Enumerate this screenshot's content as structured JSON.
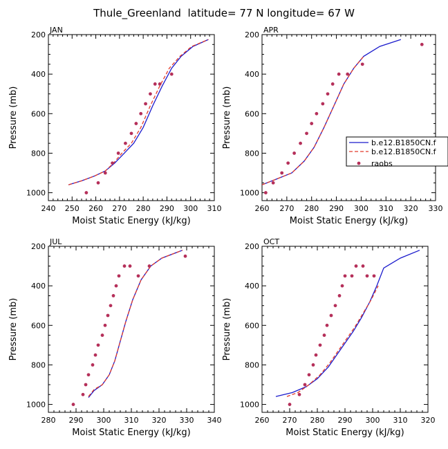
{
  "figure": {
    "title": "Thule_Greenland  latitude= 77 N longitude= 67 W"
  },
  "legend": {
    "entries": [
      {
        "label": "b.e12.B1850CN.f",
        "color": "#1a1acc",
        "style": "solid"
      },
      {
        "label": "b.e12.B1850CN.f",
        "color": "#e23a2a",
        "style": "dashed"
      },
      {
        "label": "raobs",
        "color": "#b5305a",
        "style": "marker"
      }
    ]
  },
  "chart_data": [
    {
      "type": "line",
      "panel": "JAN",
      "xlabel": "Moist Static Energy (kJ/kg)",
      "ylabel": "Pressure (mb)",
      "xlim": [
        240,
        310
      ],
      "ylim": [
        200,
        1040
      ],
      "y_inverted": true,
      "xticks": [
        240,
        250,
        260,
        270,
        280,
        290,
        300,
        310
      ],
      "yticks": [
        200,
        400,
        600,
        800,
        1000
      ],
      "series": [
        {
          "name": "b.e12.B1850CN.f",
          "style": "solid",
          "color": "#1a1acc",
          "x": [
            248.5,
            254,
            259.5,
            264,
            268,
            272,
            276,
            280,
            284,
            288,
            292,
            296,
            301,
            307.5
          ],
          "y": [
            960,
            940,
            915,
            890,
            850,
            800,
            750,
            670,
            560,
            460,
            370,
            310,
            260,
            225
          ]
        },
        {
          "name": "b.e12.B1850CN.f",
          "style": "dashed",
          "color": "#e23a2a",
          "x": [
            248.5,
            254,
            259.5,
            264,
            267.5,
            271,
            275,
            279,
            283,
            287,
            291,
            295.5,
            300.5,
            307.5
          ],
          "y": [
            960,
            940,
            915,
            890,
            850,
            800,
            750,
            670,
            560,
            460,
            370,
            310,
            260,
            225
          ]
        },
        {
          "name": "raobs",
          "style": "marker",
          "color": "#b5305a",
          "x": [
            256,
            261,
            264,
            267,
            269.5,
            272.5,
            275,
            277,
            279,
            281,
            283,
            285,
            287,
            292
          ],
          "y": [
            1000,
            950,
            900,
            850,
            800,
            750,
            700,
            650,
            600,
            550,
            500,
            450,
            450,
            400
          ]
        }
      ]
    },
    {
      "type": "line",
      "panel": "APR",
      "xlabel": "Moist Static Energy (kJ/kg)",
      "ylabel": "Pressure (mb)",
      "xlim": [
        260,
        330
      ],
      "ylim": [
        200,
        1040
      ],
      "y_inverted": true,
      "xticks": [
        260,
        270,
        280,
        290,
        300,
        310,
        320,
        330
      ],
      "yticks": [
        200,
        400,
        600,
        800,
        1000
      ],
      "series": [
        {
          "name": "b.e12.B1850CN.f",
          "style": "solid",
          "color": "#1a1acc",
          "x": [
            260,
            266,
            272,
            277,
            281,
            285,
            289,
            293,
            297,
            301,
            307.5,
            316
          ],
          "y": [
            960,
            930,
            900,
            840,
            770,
            670,
            560,
            450,
            370,
            310,
            260,
            225
          ]
        },
        {
          "name": "b.e12.B1850CN.f",
          "style": "dashed",
          "color": "#e23a2a",
          "x": [
            260,
            266,
            272,
            277,
            281,
            285,
            289,
            293,
            297,
            301
          ],
          "y": [
            960,
            930,
            900,
            840,
            770,
            670,
            560,
            450,
            370,
            310
          ]
        },
        {
          "name": "raobs",
          "style": "marker",
          "color": "#b5305a",
          "x": [
            261.5,
            264.5,
            268,
            270.5,
            273,
            275.5,
            278,
            280,
            282,
            284.5,
            286.5,
            288.5,
            291,
            294.5,
            300.5,
            324.5
          ],
          "y": [
            1000,
            950,
            900,
            850,
            800,
            750,
            700,
            650,
            600,
            550,
            500,
            450,
            400,
            400,
            350,
            250
          ]
        }
      ]
    },
    {
      "type": "line",
      "panel": "JUL",
      "xlabel": "Moist Static Energy (kJ/kg)",
      "ylabel": "Pressure (mb)",
      "xlim": [
        280,
        340
      ],
      "ylim": [
        200,
        1040
      ],
      "y_inverted": true,
      "xticks": [
        280,
        290,
        300,
        310,
        320,
        330,
        340
      ],
      "yticks": [
        200,
        400,
        600,
        800,
        1000
      ],
      "series": [
        {
          "name": "b.e12.B1850CN.f",
          "style": "solid",
          "color": "#1a1acc",
          "x": [
            294.5,
            296.5,
            299.5,
            302,
            304,
            306,
            308,
            310.5,
            313.5,
            317,
            321,
            328.5
          ],
          "y": [
            965,
            930,
            900,
            850,
            780,
            680,
            580,
            470,
            370,
            300,
            260,
            220
          ]
        },
        {
          "name": "b.e12.B1850CN.f",
          "style": "dashed",
          "color": "#e23a2a",
          "x": [
            294.5,
            296.5,
            299.5,
            302,
            304,
            306,
            308,
            310.5,
            313.5,
            317,
            321,
            328.5
          ],
          "y": [
            960,
            925,
            900,
            850,
            780,
            680,
            580,
            470,
            370,
            300,
            260,
            220
          ]
        },
        {
          "name": "raobs",
          "style": "marker",
          "color": "#b5305a",
          "x": [
            289,
            292.5,
            293.5,
            294.5,
            296,
            297,
            298,
            299.5,
            300.5,
            301.5,
            302.5,
            303.5,
            304.5,
            305.5,
            307.5,
            309.5,
            312.5,
            316.5,
            329.5
          ],
          "y": [
            1000,
            950,
            900,
            850,
            800,
            750,
            700,
            650,
            600,
            550,
            500,
            450,
            400,
            350,
            300,
            300,
            350,
            300,
            250
          ]
        }
      ]
    },
    {
      "type": "line",
      "panel": "OCT",
      "xlabel": "Moist Static Energy (kJ/kg)",
      "ylabel": "Pressure (mb)",
      "xlim": [
        260,
        320
      ],
      "ylim": [
        200,
        1040
      ],
      "y_inverted": true,
      "xticks": [
        260,
        270,
        280,
        290,
        300,
        310,
        320
      ],
      "yticks": [
        200,
        400,
        600,
        800,
        1000
      ],
      "series": [
        {
          "name": "b.e12.B1850CN.f",
          "style": "solid",
          "color": "#1a1acc",
          "x": [
            265,
            271,
            276,
            280,
            284,
            287,
            290,
            293,
            296,
            299,
            301.5,
            304,
            310,
            317
          ],
          "y": [
            960,
            940,
            910,
            870,
            810,
            750,
            690,
            630,
            560,
            480,
            400,
            310,
            260,
            220
          ]
        },
        {
          "name": "b.e12.B1850CN.f",
          "style": "dashed",
          "color": "#e23a2a",
          "x": [
            269,
            273,
            277,
            281,
            284.5,
            287.5,
            290.5,
            293.5,
            296.5,
            299.5,
            302
          ],
          "y": [
            960,
            940,
            900,
            850,
            790,
            730,
            670,
            610,
            540,
            470,
            400
          ]
        },
        {
          "name": "raobs",
          "style": "marker",
          "color": "#b5305a",
          "x": [
            270,
            273.5,
            275.5,
            277,
            278.5,
            279.5,
            281,
            282.5,
            283.5,
            285,
            286.5,
            288,
            289,
            290,
            292.5,
            294,
            296.5,
            298,
            300.5
          ],
          "y": [
            1000,
            950,
            900,
            850,
            800,
            750,
            700,
            650,
            600,
            550,
            500,
            450,
            400,
            350,
            350,
            300,
            300,
            350,
            350
          ]
        }
      ]
    }
  ]
}
